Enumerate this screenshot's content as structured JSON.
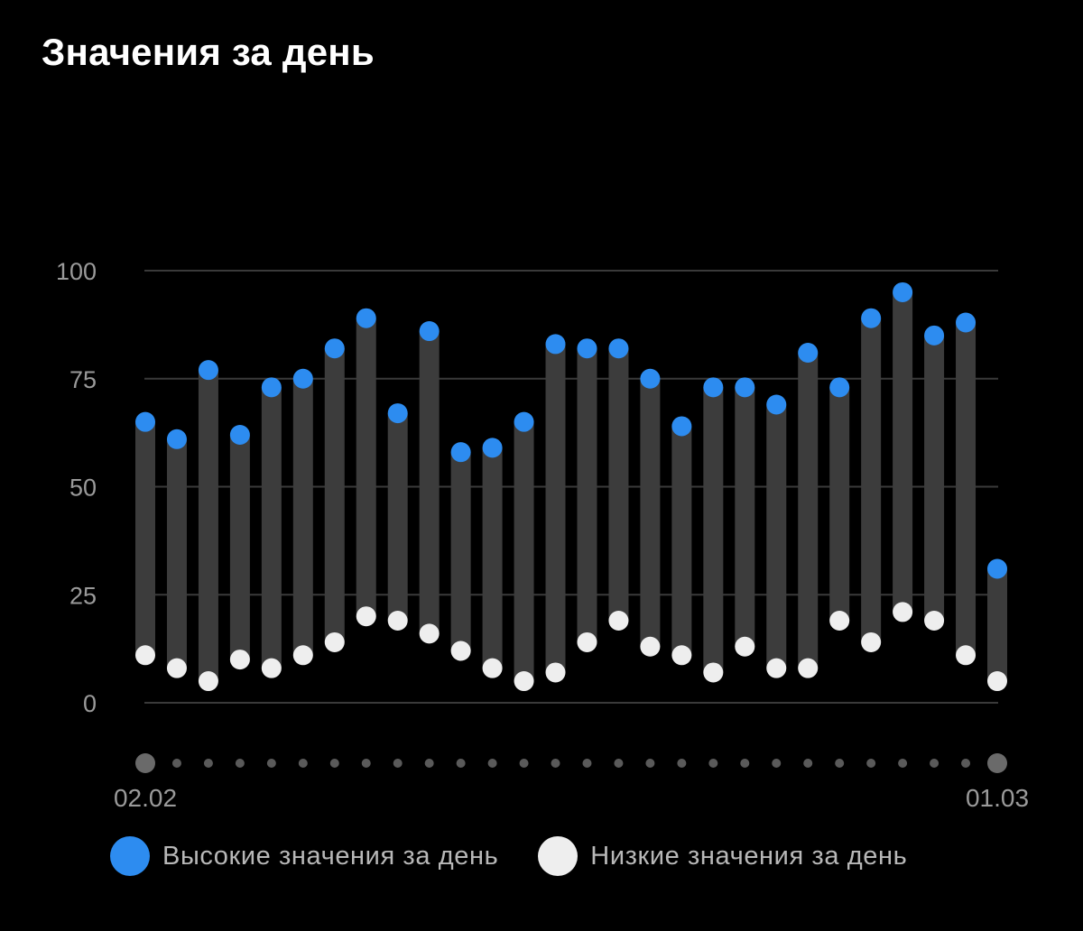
{
  "page": {
    "title": "Значения за день"
  },
  "colors": {
    "background": "#000000",
    "grid": "#3a3a3a",
    "bar": "#3c3c3c",
    "high": "#2d8cf0",
    "low": "#eeeeee",
    "axis_text": "#9a9a9a",
    "dot_small": "#5a5a5a",
    "dot_large": "#6a6a6a"
  },
  "chart_data": {
    "type": "range-bar",
    "title": "Значения за день",
    "ylim": [
      0,
      100
    ],
    "yticks": [
      "0",
      "25",
      "50",
      "75",
      "100"
    ],
    "ytick_values": [
      0,
      25,
      50,
      75,
      100
    ],
    "x_start_label": "02.02",
    "x_end_label": "01.03",
    "legend_position": "bottom",
    "series": [
      {
        "name": "Высокие значения за день",
        "color": "#2d8cf0",
        "values": [
          65,
          61,
          77,
          62,
          73,
          75,
          82,
          89,
          67,
          86,
          58,
          59,
          65,
          83,
          82,
          82,
          75,
          64,
          73,
          73,
          69,
          81,
          73,
          89,
          95,
          85,
          88,
          31
        ]
      },
      {
        "name": "Низкие значения за день",
        "color": "#eeeeee",
        "values": [
          11,
          8,
          5,
          10,
          8,
          11,
          14,
          20,
          19,
          16,
          12,
          8,
          5,
          7,
          14,
          19,
          13,
          11,
          7,
          13,
          8,
          8,
          19,
          14,
          21,
          19,
          11,
          5
        ]
      }
    ]
  },
  "legend": {
    "high_label": "Высокие значения за день",
    "low_label": "Низкие значения за день"
  }
}
